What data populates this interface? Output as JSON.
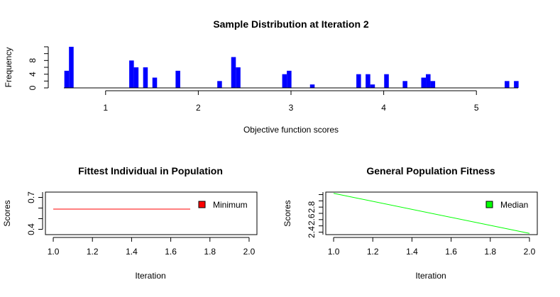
{
  "chart_data": [
    {
      "type": "bar",
      "title": "Sample Distribution at Iteration 2",
      "xlabel": "Objective function scores",
      "ylabel": "Frequency",
      "xlim": [
        0.55,
        5.45
      ],
      "ylim": [
        0,
        12
      ],
      "x_ticks": [
        1,
        2,
        3,
        4,
        5
      ],
      "y_ticks": [
        0,
        4,
        8
      ],
      "bar_width": 0.05,
      "bar_color": "#0000ff",
      "bars": [
        {
          "x": 0.58,
          "y": 5
        },
        {
          "x": 0.63,
          "y": 12
        },
        {
          "x": 1.28,
          "y": 8
        },
        {
          "x": 1.33,
          "y": 6
        },
        {
          "x": 1.43,
          "y": 6
        },
        {
          "x": 1.53,
          "y": 3
        },
        {
          "x": 1.78,
          "y": 5
        },
        {
          "x": 2.23,
          "y": 2
        },
        {
          "x": 2.38,
          "y": 9
        },
        {
          "x": 2.43,
          "y": 6
        },
        {
          "x": 2.93,
          "y": 4
        },
        {
          "x": 2.98,
          "y": 5
        },
        {
          "x": 3.23,
          "y": 1
        },
        {
          "x": 3.73,
          "y": 4
        },
        {
          "x": 3.83,
          "y": 4
        },
        {
          "x": 3.88,
          "y": 1
        },
        {
          "x": 4.03,
          "y": 4
        },
        {
          "x": 4.23,
          "y": 2
        },
        {
          "x": 4.43,
          "y": 3
        },
        {
          "x": 4.48,
          "y": 4
        },
        {
          "x": 4.53,
          "y": 2
        },
        {
          "x": 5.33,
          "y": 2
        },
        {
          "x": 5.43,
          "y": 2
        }
      ]
    },
    {
      "type": "line",
      "title": "Fittest Individual in Population",
      "xlabel": "Iteration",
      "ylabel": "Scores",
      "xlim": [
        0.96,
        2.04
      ],
      "ylim": [
        0.35,
        0.75
      ],
      "x_ticks": [
        "1.0",
        "1.2",
        "1.4",
        "1.6",
        "1.8",
        "2.0"
      ],
      "y_ticks": [
        "0.4",
        "0.7"
      ],
      "series": [
        {
          "name": "Minimum",
          "color": "#ff0000",
          "x": [
            1,
            2
          ],
          "y": [
            0.59,
            0.59
          ]
        }
      ],
      "legend": "top-right"
    },
    {
      "type": "line",
      "title": "General Population Fitness",
      "xlabel": "Iteration",
      "ylabel": "Scores",
      "xlim": [
        0.96,
        2.04
      ],
      "ylim": [
        2.36,
        3.04
      ],
      "x_ticks": [
        "1.0",
        "1.2",
        "1.4",
        "1.6",
        "1.8",
        "2.0"
      ],
      "y_ticks": [
        "2.4",
        "2.6",
        "2.8"
      ],
      "series": [
        {
          "name": "Median",
          "color": "#00ff00",
          "x": [
            1,
            2
          ],
          "y": [
            3.02,
            2.38
          ]
        }
      ],
      "legend": "top-right"
    }
  ]
}
